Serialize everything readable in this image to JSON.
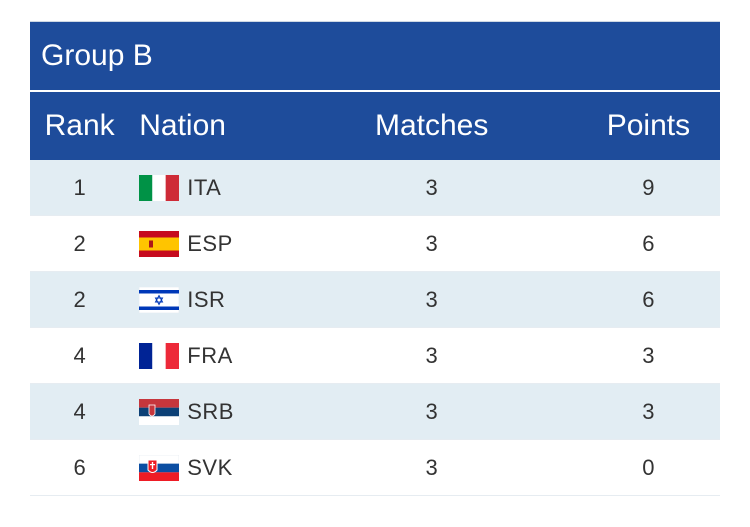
{
  "group": {
    "title": "Group B"
  },
  "columns": {
    "rank": "Rank",
    "nation": "Nation",
    "matches": "Matches",
    "points": "Points"
  },
  "rows": [
    {
      "rank": "1",
      "code": "ITA",
      "flag_icon": "italy-flag-icon",
      "matches": "3",
      "points": "9"
    },
    {
      "rank": "2",
      "code": "ESP",
      "flag_icon": "spain-flag-icon",
      "matches": "3",
      "points": "6"
    },
    {
      "rank": "2",
      "code": "ISR",
      "flag_icon": "israel-flag-icon",
      "matches": "3",
      "points": "6"
    },
    {
      "rank": "4",
      "code": "FRA",
      "flag_icon": "france-flag-icon",
      "matches": "3",
      "points": "3"
    },
    {
      "rank": "4",
      "code": "SRB",
      "flag_icon": "serbia-flag-icon",
      "matches": "3",
      "points": "3"
    },
    {
      "rank": "6",
      "code": "SVK",
      "flag_icon": "slovakia-flag-icon",
      "matches": "3",
      "points": "0"
    }
  ],
  "colors": {
    "header_bg": "#1e4c9b",
    "row_alt_bg": "#e2edf3",
    "row_bg": "#ffffff",
    "text": "#333333"
  }
}
